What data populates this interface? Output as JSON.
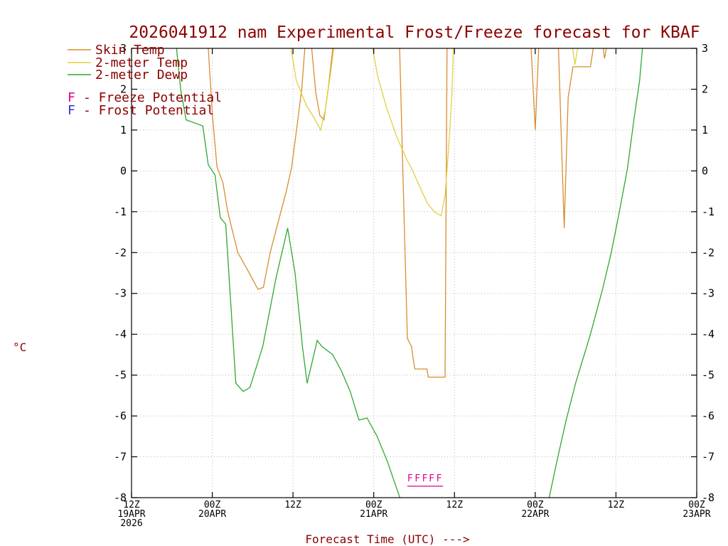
{
  "colors": {
    "text": "#8b0000",
    "axis": "#000000",
    "grid": "#b9b9b9"
  },
  "title": {
    "text": "2026041912 nam Experimental Frost/Freeze forecast for KBAF"
  },
  "chart_data": {
    "type": "line",
    "title": "2026041912 nam Experimental Frost/Freeze forecast for KBAF",
    "xlabel": "Forecast Time (UTC) --->",
    "ylabel": "°C",
    "xlim": [
      0,
      84
    ],
    "ylim": [
      -8,
      3
    ],
    "grid": true,
    "x_axis_note": "hours from 12Z 19APR 2026",
    "yticks": [
      3,
      2,
      1,
      0,
      -1,
      -2,
      -3,
      -4,
      -5,
      -6,
      -7,
      -8
    ],
    "xticks": [
      {
        "hour": 0,
        "lines": [
          "12Z",
          "19APR",
          "2026"
        ]
      },
      {
        "hour": 12,
        "lines": [
          "00Z",
          "20APR"
        ]
      },
      {
        "hour": 24,
        "lines": [
          "12Z"
        ]
      },
      {
        "hour": 36,
        "lines": [
          "00Z",
          "21APR"
        ]
      },
      {
        "hour": 48,
        "lines": [
          "12Z"
        ]
      },
      {
        "hour": 60,
        "lines": [
          "00Z",
          "22APR"
        ]
      },
      {
        "hour": 72,
        "lines": [
          "12Z"
        ]
      },
      {
        "hour": 84,
        "lines": [
          "00Z",
          "23APR"
        ]
      }
    ],
    "series": [
      {
        "name": "Skin Temp",
        "color": "#d78d2f",
        "segments": [
          [
            [
              11.3,
              3.3
            ],
            [
              12.0,
              1.4
            ],
            [
              12.7,
              0.1
            ],
            [
              13.6,
              -0.3
            ],
            [
              14.3,
              -1.0
            ],
            [
              15.8,
              -2.0
            ],
            [
              17.5,
              -2.5
            ],
            [
              18.8,
              -2.9
            ],
            [
              19.6,
              -2.85
            ],
            [
              20.6,
              -2.0
            ],
            [
              22.2,
              -1.0
            ],
            [
              23.0,
              -0.5
            ],
            [
              23.8,
              0.1
            ],
            [
              24.6,
              1.1
            ],
            [
              25.3,
              2.0
            ],
            [
              25.9,
              3.3
            ]
          ],
          [
            [
              26.6,
              3.3
            ],
            [
              27.4,
              1.9
            ],
            [
              28.0,
              1.35
            ],
            [
              28.6,
              1.25
            ],
            [
              29.3,
              2.1
            ],
            [
              30.1,
              3.3
            ]
          ],
          [
            [
              39.8,
              3.3
            ],
            [
              40.4,
              -0.5
            ],
            [
              41.0,
              -4.1
            ],
            [
              41.6,
              -4.3
            ],
            [
              42.1,
              -4.85
            ],
            [
              43.9,
              -4.85
            ],
            [
              44.1,
              -5.05
            ],
            [
              46.6,
              -5.05
            ],
            [
              46.9,
              3.3
            ]
          ],
          [
            [
              59.3,
              3.3
            ],
            [
              60.0,
              1.0
            ],
            [
              60.6,
              3.3
            ]
          ],
          [
            [
              63.4,
              3.3
            ],
            [
              64.3,
              -1.4
            ],
            [
              64.9,
              1.8
            ],
            [
              65.6,
              2.55
            ],
            [
              68.2,
              2.55
            ],
            [
              68.9,
              3.3
            ]
          ],
          [
            [
              69.9,
              3.3
            ],
            [
              70.3,
              2.75
            ],
            [
              70.9,
              3.3
            ]
          ]
        ]
      },
      {
        "name": "2-meter Temp",
        "color": "#e0d040",
        "segments": [
          [
            [
              23.4,
              3.3
            ],
            [
              24.5,
              2.2
            ],
            [
              26.0,
              1.6
            ],
            [
              27.3,
              1.25
            ],
            [
              28.1,
              1.0
            ],
            [
              28.8,
              1.5
            ],
            [
              29.6,
              2.4
            ],
            [
              30.3,
              3.3
            ]
          ],
          [
            [
              35.5,
              3.3
            ],
            [
              36.6,
              2.3
            ],
            [
              38.0,
              1.5
            ],
            [
              39.5,
              0.8
            ],
            [
              41.0,
              0.25
            ],
            [
              41.8,
              0.0
            ],
            [
              43.0,
              -0.45
            ],
            [
              44.0,
              -0.8
            ],
            [
              45.0,
              -1.0
            ],
            [
              46.0,
              -1.1
            ],
            [
              46.6,
              -0.6
            ],
            [
              47.1,
              0.5
            ],
            [
              47.6,
              1.8
            ],
            [
              47.9,
              3.3
            ]
          ],
          [
            [
              65.3,
              3.3
            ],
            [
              65.9,
              2.6
            ],
            [
              66.6,
              3.3
            ]
          ]
        ]
      },
      {
        "name": "2-meter Dewp",
        "color": "#2fa82f",
        "segments": [
          [
            [
              6.5,
              3.3
            ],
            [
              7.3,
              2.0
            ],
            [
              8.1,
              1.25
            ],
            [
              10.6,
              1.1
            ],
            [
              11.4,
              0.15
            ],
            [
              12.4,
              -0.1
            ],
            [
              13.2,
              -1.15
            ],
            [
              14.0,
              -1.3
            ],
            [
              15.5,
              -5.2
            ],
            [
              16.6,
              -5.4
            ],
            [
              17.6,
              -5.3
            ],
            [
              19.5,
              -4.3
            ],
            [
              21.5,
              -2.6
            ],
            [
              23.2,
              -1.4
            ],
            [
              24.3,
              -2.5
            ],
            [
              25.4,
              -4.3
            ],
            [
              26.1,
              -5.2
            ],
            [
              27.6,
              -4.15
            ],
            [
              28.3,
              -4.3
            ],
            [
              29.9,
              -4.5
            ],
            [
              31.2,
              -4.9
            ],
            [
              32.5,
              -5.4
            ],
            [
              33.8,
              -6.1
            ],
            [
              35.0,
              -6.05
            ],
            [
              36.5,
              -6.5
            ],
            [
              38.0,
              -7.1
            ],
            [
              40.3,
              -8.2
            ]
          ],
          [
            [
              61.8,
              -8.2
            ],
            [
              63.5,
              -6.9
            ],
            [
              64.6,
              -6.1
            ],
            [
              66.0,
              -5.2
            ],
            [
              68.2,
              -4.0
            ],
            [
              70.0,
              -2.9
            ],
            [
              71.3,
              -2.0
            ],
            [
              72.5,
              -1.0
            ],
            [
              73.7,
              0.05
            ],
            [
              74.7,
              1.3
            ],
            [
              75.5,
              2.2
            ],
            [
              76.1,
              3.3
            ]
          ]
        ]
      }
    ],
    "markers": {
      "freeze": {
        "label": "F",
        "color": "#dd0088",
        "temp": -7.6,
        "hours": [
          41.4,
          42.5,
          43.6,
          44.6,
          45.7
        ],
        "underline": {
          "from": 41.0,
          "to": 46.3,
          "temp": -7.72
        }
      }
    },
    "legend": [
      {
        "swatch": "line",
        "color": "#d78d2f",
        "label": "Skin Temp"
      },
      {
        "swatch": "line",
        "color": "#e0d040",
        "label": "2-meter Temp"
      },
      {
        "swatch": "line",
        "color": "#2fa82f",
        "label": "2-meter Dewp"
      },
      {
        "swatch": "F",
        "marker": "F",
        "color": "#dd0088",
        "label": "- Freeze Potential"
      },
      {
        "swatch": "F",
        "marker": "F",
        "color": "#3333cc",
        "label": "- Frost Potential"
      }
    ]
  }
}
